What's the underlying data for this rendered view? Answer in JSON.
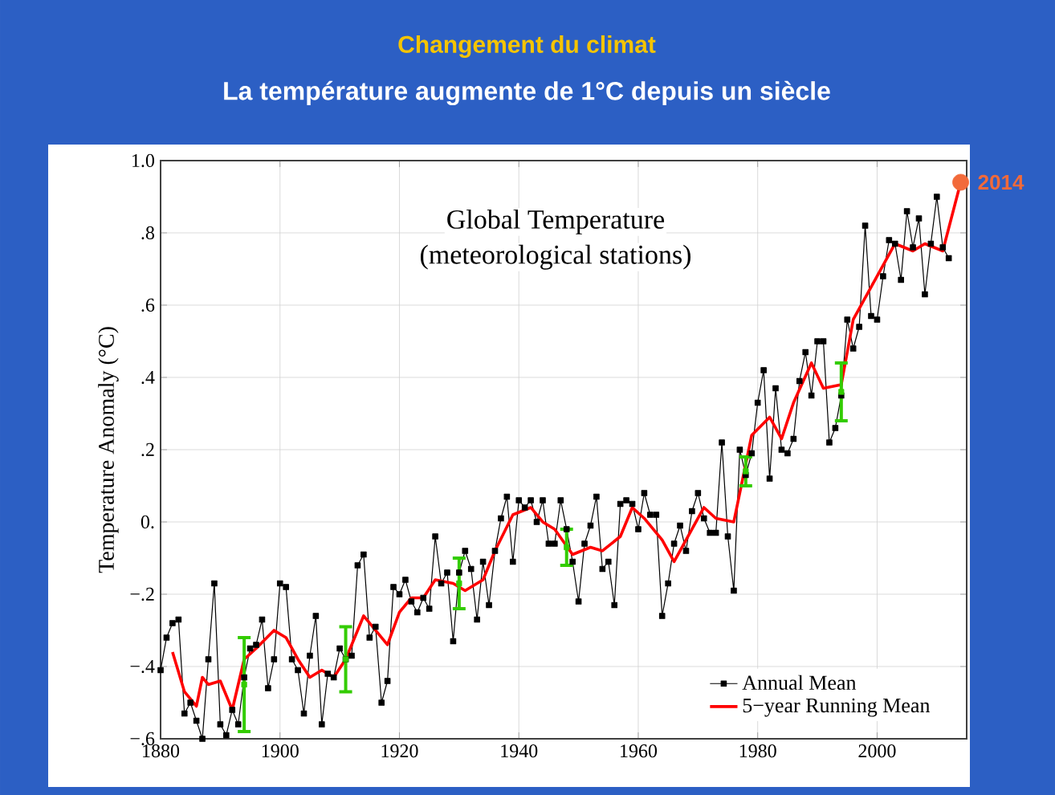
{
  "chart_data": {
    "type": "line",
    "title": "Changement du climat",
    "subtitle": "La température augmente de 1°C depuis un siècle",
    "ylabel": "Temperature Anomaly (°C)",
    "annotations": [
      "Global Temperature",
      "(meteorological stations)",
      {
        "text": "2014",
        "x": 2014,
        "y": 0.94
      }
    ],
    "xlim": [
      1880,
      2015
    ],
    "ylim": [
      -0.6,
      1.0
    ],
    "xticks": [
      1880,
      1900,
      1920,
      1940,
      1960,
      1980,
      2000
    ],
    "yticks": [
      {
        "value": -0.6,
        "label": "−.6"
      },
      {
        "value": -0.4,
        "label": "−.4"
      },
      {
        "value": -0.2,
        "label": "−.2"
      },
      {
        "value": 0,
        "label": "0."
      },
      {
        "value": 0.2,
        "label": ".2"
      },
      {
        "value": 0.4,
        "label": ".4"
      },
      {
        "value": 0.6,
        "label": ".6"
      },
      {
        "value": 0.8,
        "label": ".8"
      },
      {
        "value": 1.0,
        "label": "1.0"
      }
    ],
    "grid": true,
    "legend": "bottom right",
    "series": [
      {
        "name": "Annual Mean",
        "color": "#000000",
        "marker": "square",
        "x": [
          1880,
          1881,
          1882,
          1883,
          1884,
          1885,
          1886,
          1887,
          1888,
          1889,
          1890,
          1891,
          1892,
          1893,
          1894,
          1895,
          1896,
          1897,
          1898,
          1899,
          1900,
          1901,
          1902,
          1903,
          1904,
          1905,
          1906,
          1907,
          1908,
          1909,
          1910,
          1911,
          1912,
          1913,
          1914,
          1915,
          1916,
          1917,
          1918,
          1919,
          1920,
          1921,
          1922,
          1923,
          1924,
          1925,
          1926,
          1927,
          1928,
          1929,
          1930,
          1931,
          1932,
          1933,
          1934,
          1935,
          1936,
          1937,
          1938,
          1939,
          1940,
          1941,
          1942,
          1943,
          1944,
          1945,
          1946,
          1947,
          1948,
          1949,
          1950,
          1951,
          1952,
          1953,
          1954,
          1955,
          1956,
          1957,
          1958,
          1959,
          1960,
          1961,
          1962,
          1963,
          1964,
          1965,
          1966,
          1967,
          1968,
          1969,
          1970,
          1971,
          1972,
          1973,
          1974,
          1975,
          1976,
          1977,
          1978,
          1979,
          1980,
          1981,
          1982,
          1983,
          1984,
          1985,
          1986,
          1987,
          1988,
          1989,
          1990,
          1991,
          1992,
          1993,
          1994,
          1995,
          1996,
          1997,
          1998,
          1999,
          2000,
          2001,
          2002,
          2003,
          2004,
          2005,
          2006,
          2007,
          2008,
          2009,
          2010,
          2011,
          2012
        ],
        "values": [
          -0.41,
          -0.32,
          -0.28,
          -0.27,
          -0.53,
          -0.5,
          -0.55,
          -0.6,
          -0.38,
          -0.17,
          -0.56,
          -0.59,
          -0.52,
          -0.56,
          -0.43,
          -0.35,
          -0.34,
          -0.27,
          -0.46,
          -0.38,
          -0.17,
          -0.18,
          -0.38,
          -0.41,
          -0.53,
          -0.37,
          -0.26,
          -0.56,
          -0.42,
          -0.43,
          -0.35,
          -0.38,
          -0.37,
          -0.12,
          -0.09,
          -0.32,
          -0.29,
          -0.5,
          -0.44,
          -0.18,
          -0.2,
          -0.16,
          -0.22,
          -0.25,
          -0.21,
          -0.24,
          -0.04,
          -0.17,
          -0.14,
          -0.33,
          -0.14,
          -0.08,
          -0.13,
          -0.27,
          -0.11,
          -0.23,
          -0.08,
          0.01,
          0.07,
          -0.11,
          0.06,
          0.04,
          0.06,
          0.0,
          0.06,
          -0.06,
          -0.06,
          0.06,
          -0.02,
          -0.11,
          -0.22,
          -0.06,
          -0.01,
          0.07,
          -0.13,
          -0.11,
          -0.23,
          0.05,
          0.06,
          0.05,
          -0.02,
          0.08,
          0.02,
          0.02,
          -0.26,
          -0.17,
          -0.06,
          -0.01,
          -0.08,
          0.03,
          0.08,
          0.01,
          -0.03,
          -0.03,
          0.22,
          -0.04,
          -0.19,
          0.2,
          0.13,
          0.19,
          0.33,
          0.42,
          0.12,
          0.37,
          0.2,
          0.19,
          0.23,
          0.39,
          0.47,
          0.35,
          0.5,
          0.5,
          0.22,
          0.26,
          0.35,
          0.56,
          0.48,
          0.54,
          0.82,
          0.57,
          0.56,
          0.68,
          0.78,
          0.77,
          0.67,
          0.86,
          0.76,
          0.84,
          0.63,
          0.77,
          0.9,
          0.76,
          0.73
        ]
      },
      {
        "name": "5−year Running Mean",
        "color": "#ff0000",
        "marker": "none",
        "x": [
          1882,
          1884,
          1886,
          1887,
          1888,
          1890,
          1892,
          1894,
          1896,
          1899,
          1901,
          1903,
          1905,
          1907,
          1909,
          1911,
          1914,
          1916,
          1918,
          1920,
          1922,
          1924,
          1926,
          1929,
          1931,
          1934,
          1936,
          1939,
          1942,
          1944,
          1946,
          1949,
          1952,
          1954,
          1957,
          1959,
          1961,
          1964,
          1966,
          1968,
          1971,
          1973,
          1976,
          1979,
          1982,
          1984,
          1986,
          1989,
          1991,
          1994,
          1996,
          1997,
          2000,
          2003,
          2006,
          2008,
          2011,
          2014
        ],
        "values": [
          -0.36,
          -0.47,
          -0.51,
          -0.43,
          -0.45,
          -0.44,
          -0.52,
          -0.38,
          -0.35,
          -0.3,
          -0.32,
          -0.38,
          -0.43,
          -0.41,
          -0.43,
          -0.38,
          -0.26,
          -0.3,
          -0.34,
          -0.25,
          -0.21,
          -0.21,
          -0.16,
          -0.17,
          -0.19,
          -0.16,
          -0.08,
          0.02,
          0.04,
          0.0,
          -0.02,
          -0.09,
          -0.07,
          -0.08,
          -0.04,
          0.04,
          0.01,
          -0.05,
          -0.11,
          -0.05,
          0.04,
          0.01,
          0.0,
          0.24,
          0.29,
          0.23,
          0.33,
          0.44,
          0.37,
          0.38,
          0.56,
          0.59,
          0.68,
          0.77,
          0.75,
          0.77,
          0.75,
          0.94
        ]
      },
      {
        "type": "scatter",
        "color": "#33cc00",
        "marker": "square",
        "x": [
          1894,
          1911,
          1930,
          1948,
          1978,
          1994
        ],
        "values": [
          -0.45,
          -0.38,
          -0.17,
          -0.07,
          0.14,
          0.36
        ],
        "errors": [
          0.13,
          0.09,
          0.07,
          0.05,
          0.04,
          0.08
        ]
      },
      {
        "type": "scatter",
        "color": "#f26a3a",
        "marker": "circle",
        "x": [
          2014
        ],
        "values": [
          0.94
        ]
      }
    ]
  }
}
